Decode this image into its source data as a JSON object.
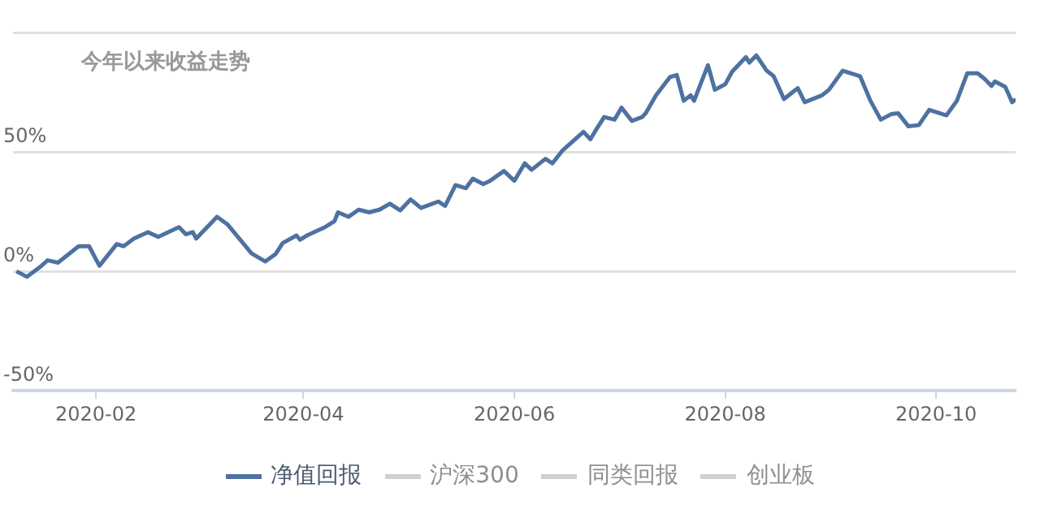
{
  "chart_data": {
    "type": "line",
    "title": "今年以来收益走势",
    "xlim": [
      "2020-01-08",
      "2020-10-24"
    ],
    "xticks": [
      "2020-02",
      "2020-04",
      "2020-06",
      "2020-08",
      "2020-10"
    ],
    "ylim": [
      -50,
      100
    ],
    "yticks": [
      {
        "value": -50,
        "label": "-50%"
      },
      {
        "value": 0,
        "label": "0%"
      },
      {
        "value": 50,
        "label": "50%"
      },
      {
        "value": 100,
        "label": null
      }
    ],
    "grid": "y",
    "legend": "bottom",
    "marker": "none",
    "line_style": "solid",
    "x": [
      "2020-01-09",
      "2020-01-12",
      "2020-01-16",
      "2020-01-18",
      "2020-01-21",
      "2020-01-27",
      "2020-01-30",
      "2020-02-02",
      "2020-02-07",
      "2020-02-09",
      "2020-02-12",
      "2020-02-16",
      "2020-02-19",
      "2020-02-25",
      "2020-02-27",
      "2020-02-29",
      "2020-03-01",
      "2020-03-07",
      "2020-03-10",
      "2020-03-17",
      "2020-03-21",
      "2020-03-24",
      "2020-03-26",
      "2020-03-30",
      "2020-03-31",
      "2020-04-02",
      "2020-04-07",
      "2020-04-10",
      "2020-04-11",
      "2020-04-14",
      "2020-04-17",
      "2020-04-20",
      "2020-04-23",
      "2020-04-26",
      "2020-04-29",
      "2020-05-02",
      "2020-05-05",
      "2020-05-10",
      "2020-05-12",
      "2020-05-15",
      "2020-05-18",
      "2020-05-20",
      "2020-05-23",
      "2020-05-25",
      "2020-05-29",
      "2020-06-01",
      "2020-06-04",
      "2020-06-06",
      "2020-06-10",
      "2020-06-12",
      "2020-06-15",
      "2020-06-21",
      "2020-06-23",
      "2020-06-25",
      "2020-06-27",
      "2020-06-30",
      "2020-07-02",
      "2020-07-05",
      "2020-07-08",
      "2020-07-09",
      "2020-07-12",
      "2020-07-16",
      "2020-07-18",
      "2020-07-20",
      "2020-07-22",
      "2020-07-23",
      "2020-07-25",
      "2020-07-27",
      "2020-07-29",
      "2020-08-01",
      "2020-08-03",
      "2020-08-07",
      "2020-08-08",
      "2020-08-10",
      "2020-08-13",
      "2020-08-15",
      "2020-08-18",
      "2020-08-22",
      "2020-08-24",
      "2020-08-29",
      "2020-08-31",
      "2020-09-04",
      "2020-09-09",
      "2020-09-12",
      "2020-09-15",
      "2020-09-18",
      "2020-09-20",
      "2020-09-23",
      "2020-09-26",
      "2020-09-29",
      "2020-10-02",
      "2020-10-04",
      "2020-10-07",
      "2020-10-10",
      "2020-10-13",
      "2020-10-15",
      "2020-10-17",
      "2020-10-18",
      "2020-10-21",
      "2020-10-23",
      "2020-10-24"
    ],
    "series": [
      {
        "name": "净值回报",
        "color": "#4e72a0",
        "values": [
          0,
          -2.3,
          2,
          4.6,
          3.6,
          10.5,
          10.5,
          2.3,
          11.4,
          10.5,
          13.7,
          16.4,
          14.4,
          18.5,
          15.5,
          16.4,
          13.7,
          22.8,
          19.7,
          7.5,
          4.1,
          7.3,
          11.8,
          15,
          13.2,
          15,
          18.3,
          21,
          24.7,
          22.8,
          25.8,
          24.7,
          25.8,
          28.3,
          25.5,
          30.1,
          26.5,
          29.2,
          27.4,
          36.1,
          34.8,
          38.8,
          36.5,
          37.9,
          42,
          37.9,
          45.2,
          42.5,
          47.1,
          45.2,
          50.7,
          58.4,
          55.3,
          60.1,
          64.6,
          63.5,
          68.5,
          63,
          64.6,
          66.2,
          73.7,
          81.3,
          82.2,
          71.4,
          73.7,
          71.4,
          78.9,
          86.3,
          76,
          78.3,
          83.6,
          89.7,
          87.4,
          90.4,
          84,
          81.7,
          72.1,
          76.7,
          70.8,
          73.7,
          76,
          84,
          81.7,
          71.4,
          63.5,
          65.8,
          66.2,
          60.7,
          61.2,
          67.6,
          66.2,
          65.3,
          71.4,
          82.9,
          82.9,
          80.6,
          77.6,
          79.5,
          77.2,
          70.8,
          72.1
        ]
      },
      {
        "name": "沪深300",
        "color": "#d0d0d0",
        "values": [
          null,
          null,
          null,
          null,
          null,
          null,
          null,
          null,
          null,
          null,
          null,
          null,
          null,
          null,
          null,
          null,
          null,
          null,
          null,
          null,
          null,
          null,
          null,
          null,
          null,
          null,
          null,
          null,
          null,
          null,
          null,
          null,
          null,
          null,
          null,
          null,
          null,
          null,
          null,
          null,
          null,
          null,
          null,
          null,
          null,
          null,
          null,
          null,
          null,
          null,
          null,
          null,
          null,
          null,
          null,
          null,
          null,
          null,
          null,
          null,
          null,
          null,
          null,
          null,
          null,
          null,
          null,
          null,
          null,
          null,
          null,
          null,
          null,
          null,
          null,
          null,
          null,
          null,
          null,
          null,
          null,
          null,
          null,
          null,
          null,
          null,
          null,
          null,
          null,
          null,
          null,
          null,
          null,
          null,
          null,
          null,
          null,
          null,
          null,
          null,
          null
        ]
      },
      {
        "name": "同类回报",
        "color": "#d0d0d0",
        "values": [
          null,
          null,
          null,
          null,
          null,
          null,
          null,
          null,
          null,
          null,
          null,
          null,
          null,
          null,
          null,
          null,
          null,
          null,
          null,
          null,
          null,
          null,
          null,
          null,
          null,
          null,
          null,
          null,
          null,
          null,
          null,
          null,
          null,
          null,
          null,
          null,
          null,
          null,
          null,
          null,
          null,
          null,
          null,
          null,
          null,
          null,
          null,
          null,
          null,
          null,
          null,
          null,
          null,
          null,
          null,
          null,
          null,
          null,
          null,
          null,
          null,
          null,
          null,
          null,
          null,
          null,
          null,
          null,
          null,
          null,
          null,
          null,
          null,
          null,
          null,
          null,
          null,
          null,
          null,
          null,
          null,
          null,
          null,
          null,
          null,
          null,
          null,
          null,
          null,
          null,
          null,
          null,
          null,
          null,
          null,
          null,
          null,
          null,
          null,
          null,
          null
        ]
      },
      {
        "name": "创业板",
        "color": "#d0d0d0",
        "values": [
          null,
          null,
          null,
          null,
          null,
          null,
          null,
          null,
          null,
          null,
          null,
          null,
          null,
          null,
          null,
          null,
          null,
          null,
          null,
          null,
          null,
          null,
          null,
          null,
          null,
          null,
          null,
          null,
          null,
          null,
          null,
          null,
          null,
          null,
          null,
          null,
          null,
          null,
          null,
          null,
          null,
          null,
          null,
          null,
          null,
          null,
          null,
          null,
          null,
          null,
          null,
          null,
          null,
          null,
          null,
          null,
          null,
          null,
          null,
          null,
          null,
          null,
          null,
          null,
          null,
          null,
          null,
          null,
          null,
          null,
          null,
          null,
          null,
          null,
          null,
          null,
          null,
          null,
          null,
          null,
          null,
          null,
          null,
          null,
          null,
          null,
          null,
          null,
          null,
          null,
          null,
          null,
          null,
          null,
          null,
          null,
          null,
          null,
          null,
          null,
          null
        ]
      }
    ]
  }
}
